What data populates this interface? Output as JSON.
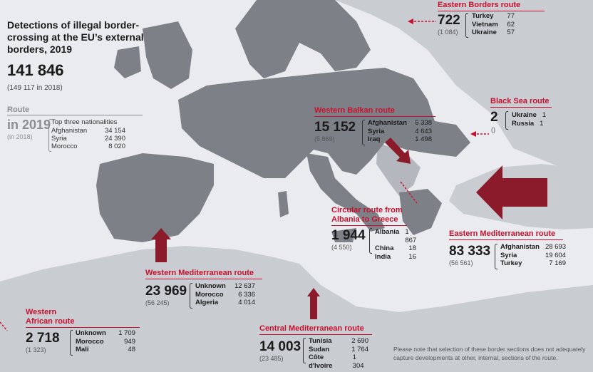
{
  "title": "Detections of illegal border-crossing at the EU’s external borders, 2019",
  "total": "141 846",
  "total_prev": "(149 117 in 2018)",
  "legend": {
    "route_label": "Route",
    "year_label": "in 2019",
    "prev_label": "(in 2018)",
    "top_header": "Top three nationalities",
    "rows": [
      {
        "name": "Afghanistan",
        "value": "34 154"
      },
      {
        "name": "Syria",
        "value": "24 390"
      },
      {
        "name": "Morocco",
        "value": "8 020"
      }
    ]
  },
  "routes": {
    "eastern_borders": {
      "title": "Eastern Borders route",
      "total": "722",
      "prev": "(1 084)",
      "rows": [
        {
          "name": "Turkey",
          "value": "77"
        },
        {
          "name": "Vietnam",
          "value": "62"
        },
        {
          "name": "Ukraine",
          "value": "57"
        }
      ]
    },
    "black_sea": {
      "title": "Black Sea route",
      "total": "2",
      "prev": "()",
      "rows": [
        {
          "name": "Ukraine",
          "value": "1"
        },
        {
          "name": "Russia",
          "value": "1"
        }
      ]
    },
    "western_balkan": {
      "title": "Western Balkan route",
      "total": "15 152",
      "prev": "(5 869)",
      "rows": [
        {
          "name": "Afghanistan",
          "value": "5 338"
        },
        {
          "name": "Syria",
          "value": "4 643"
        },
        {
          "name": "Iraq",
          "value": "1 498"
        }
      ]
    },
    "circular": {
      "title_line1": "Circular route from",
      "title_line2": "Albania to Greece",
      "total": "1 944",
      "prev": "(4 550)",
      "rows": [
        {
          "name": "Albania",
          "value": "1 867"
        },
        {
          "name": "China",
          "value": "18"
        },
        {
          "name": "India",
          "value": "16"
        }
      ]
    },
    "eastern_med": {
      "title": "Eastern Mediterranean route",
      "total": "83 333",
      "prev": "(56 561)",
      "rows": [
        {
          "name": "Afghanistan",
          "value": "28 693"
        },
        {
          "name": "Syria",
          "value": "19 604"
        },
        {
          "name": "Turkey",
          "value": "7 169"
        }
      ]
    },
    "western_med": {
      "title": "Western Mediterranean route",
      "total": "23 969",
      "prev": "(56 245)",
      "rows": [
        {
          "name": "Unknown",
          "value": "12 637"
        },
        {
          "name": "Morocco",
          "value": "6 336"
        },
        {
          "name": "Algeria",
          "value": "4 014"
        }
      ]
    },
    "western_african": {
      "title_line1": "Western",
      "title_line2": "African route",
      "total": "2 718",
      "prev": "(1 323)",
      "rows": [
        {
          "name": "Unknown",
          "value": "1 709"
        },
        {
          "name": "Morocco",
          "value": "949"
        },
        {
          "name": "Mali",
          "value": "48"
        }
      ]
    },
    "central_med": {
      "title": "Central Mediterranean route",
      "total": "14 003",
      "prev": "(23 485)",
      "rows": [
        {
          "name": "Tunisia",
          "value": "2 690"
        },
        {
          "name": "Sudan",
          "value": "1 764"
        },
        {
          "name": "Côte d'Ivoire",
          "value": "1 304"
        }
      ]
    }
  },
  "note": "Please note that selection of these border sections does not adequately capture developments at other, internal, sections of the route.",
  "colors": {
    "land_eu": "#7d8187",
    "land_other": "#c9ccd1",
    "sea": "#e9ebee",
    "accent": "#c8102e",
    "arrow": "#8b1a2b"
  }
}
